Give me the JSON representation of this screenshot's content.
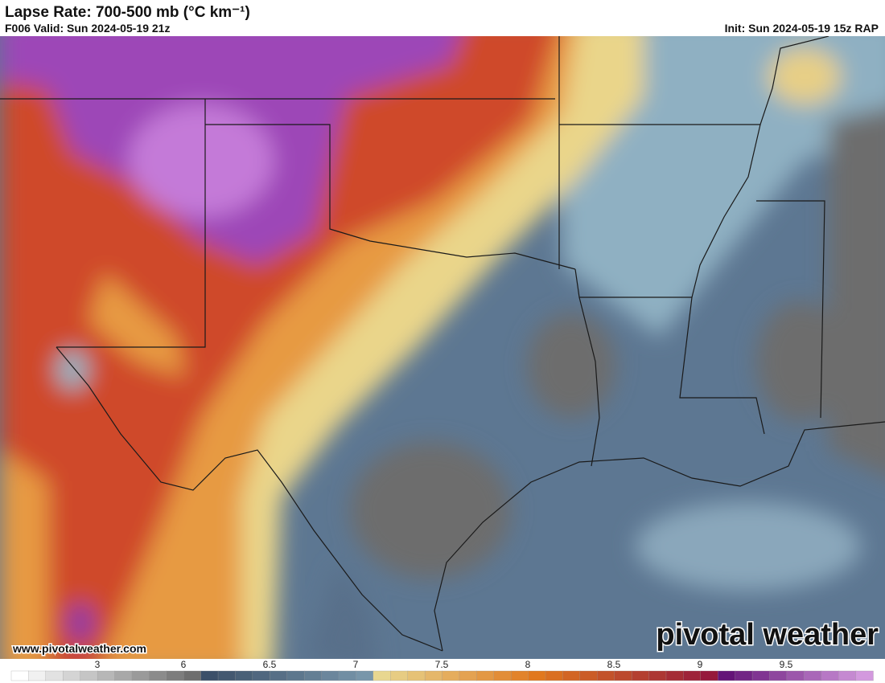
{
  "header": {
    "title": "Lapse Rate: 700-500 mb (°C km⁻¹)",
    "valid": "F006 Valid: Sun 2024-05-19 21z",
    "init": "Init: Sun 2024-05-19 15z RAP"
  },
  "map": {
    "url": "www.pivotalweather.com",
    "logo": "pivotal weather"
  },
  "colorbar": {
    "ticks": [
      3,
      6,
      6.5,
      7,
      7.5,
      8,
      8.5,
      9,
      9.5
    ]
  }
}
